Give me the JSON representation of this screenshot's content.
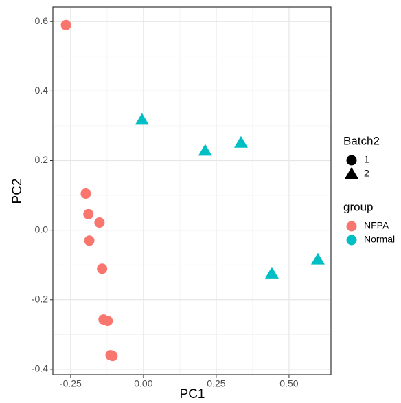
{
  "chart_data": {
    "type": "scatter",
    "x_label": "PC1",
    "y_label": "PC2",
    "xlim": [
      -0.311,
      0.644
    ],
    "ylim": [
      -0.416,
      0.642
    ],
    "xticks": [
      {
        "value": -0.25,
        "label": "-0.25"
      },
      {
        "value": 0,
        "label": "0.00"
      },
      {
        "value": 0.25,
        "label": "0.25"
      },
      {
        "value": 0.5,
        "label": "0.50"
      }
    ],
    "yticks": [
      {
        "value": -0.4,
        "label": "-0.4"
      },
      {
        "value": -0.2,
        "label": "-0.2"
      },
      {
        "value": 0,
        "label": "0.0"
      },
      {
        "value": 0.2,
        "label": "0.2"
      },
      {
        "value": 0.4,
        "label": "0.4"
      },
      {
        "value": 0.6,
        "label": "0.6"
      }
    ],
    "grid": true,
    "shape_legend": {
      "title": "Batch2",
      "labels": [
        "1",
        "2"
      ],
      "shapes": [
        "circle",
        "triangle"
      ]
    },
    "color_legend_title": "group",
    "series": [
      {
        "name": "NFPA",
        "color": "#F8766D",
        "shape": "circle",
        "x": [
          -0.266,
          -0.198,
          -0.189,
          -0.151,
          -0.186,
          -0.142,
          -0.137,
          -0.123,
          -0.113,
          -0.106
        ],
        "values": [
          0.59,
          0.105,
          0.046,
          0.022,
          -0.03,
          -0.111,
          -0.257,
          -0.261,
          -0.36,
          -0.362
        ]
      },
      {
        "name": "Normal",
        "color": "#00BFC4",
        "shape": "triangle",
        "x": [
          -0.005,
          0.212,
          0.335,
          0.441,
          0.599
        ],
        "values": [
          0.317,
          0.228,
          0.251,
          -0.125,
          -0.085
        ]
      }
    ]
  }
}
